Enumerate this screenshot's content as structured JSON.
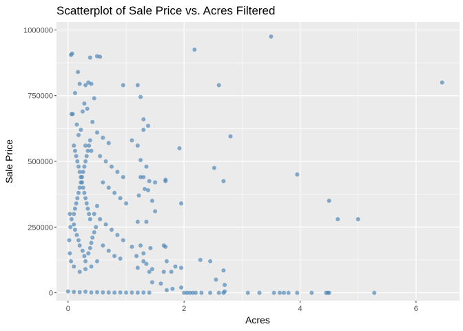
{
  "chart_data": {
    "type": "scatter",
    "title": "Scatterplot of Sale Price vs. Acres Filtered",
    "xlabel": "Acres",
    "ylabel": "Sale Price",
    "xlim": [
      -0.2,
      6.75
    ],
    "ylim": [
      -30000,
      1030000
    ],
    "x_ticks": [
      0,
      2,
      4,
      6
    ],
    "x_tick_labels": [
      "0",
      "2",
      "4",
      "6"
    ],
    "y_ticks": [
      0,
      250000,
      500000,
      750000,
      1000000
    ],
    "y_tick_labels": [
      "0",
      "250000",
      "500000",
      "750000",
      "1000000"
    ],
    "grid": true,
    "legend": "none",
    "series": [
      {
        "color": "#4682b4",
        "opacity": 0.65,
        "points": [
          [
            0.05,
            905000
          ],
          [
            0.07,
            910000
          ],
          [
            0.17,
            840000
          ],
          [
            0.38,
            895000
          ],
          [
            0.5,
            900000
          ],
          [
            0.55,
            898000
          ],
          [
            0.2,
            795000
          ],
          [
            0.3,
            790000
          ],
          [
            0.35,
            800000
          ],
          [
            0.4,
            795000
          ],
          [
            0.45,
            740000
          ],
          [
            0.12,
            760000
          ],
          [
            0.28,
            720000
          ],
          [
            0.33,
            700000
          ],
          [
            0.25,
            690000
          ],
          [
            0.06,
            680000
          ],
          [
            0.08,
            680000
          ],
          [
            0.42,
            650000
          ],
          [
            0.15,
            640000
          ],
          [
            0.22,
            620000
          ],
          [
            0.5,
            610000
          ],
          [
            0.6,
            590000
          ],
          [
            0.7,
            570000
          ],
          [
            0.18,
            600000
          ],
          [
            0.3,
            560000
          ],
          [
            0.4,
            540000
          ],
          [
            0.55,
            520000
          ],
          [
            0.65,
            500000
          ],
          [
            0.75,
            480000
          ],
          [
            0.85,
            460000
          ],
          [
            0.95,
            440000
          ],
          [
            0.6,
            420000
          ],
          [
            0.7,
            400000
          ],
          [
            0.8,
            380000
          ],
          [
            0.9,
            360000
          ],
          [
            1.0,
            340000
          ],
          [
            0.5,
            330000
          ],
          [
            0.45,
            300000
          ],
          [
            0.55,
            280000
          ],
          [
            0.65,
            260000
          ],
          [
            0.75,
            240000
          ],
          [
            0.85,
            220000
          ],
          [
            0.95,
            200000
          ],
          [
            0.6,
            180000
          ],
          [
            0.7,
            160000
          ],
          [
            0.8,
            140000
          ],
          [
            0.9,
            130000
          ],
          [
            0.5,
            120000
          ],
          [
            0.4,
            100000
          ],
          [
            0.3,
            90000
          ],
          [
            0.2,
            80000
          ],
          [
            0.1,
            100000
          ],
          [
            0.05,
            120000
          ],
          [
            0.03,
            150000
          ],
          [
            0.02,
            200000
          ],
          [
            0.04,
            250000
          ],
          [
            0.03,
            300000
          ],
          [
            0.06,
            280000
          ],
          [
            0.1,
            260000
          ],
          [
            0.12,
            240000
          ],
          [
            0.15,
            220000
          ],
          [
            0.18,
            200000
          ],
          [
            0.2,
            180000
          ],
          [
            0.25,
            160000
          ],
          [
            0.28,
            140000
          ],
          [
            0.3,
            120000
          ],
          [
            0.35,
            150000
          ],
          [
            0.38,
            170000
          ],
          [
            0.4,
            190000
          ],
          [
            0.42,
            210000
          ],
          [
            0.45,
            230000
          ],
          [
            0.48,
            250000
          ],
          [
            0.1,
            300000
          ],
          [
            0.12,
            320000
          ],
          [
            0.14,
            340000
          ],
          [
            0.16,
            360000
          ],
          [
            0.18,
            380000
          ],
          [
            0.2,
            400000
          ],
          [
            0.22,
            420000
          ],
          [
            0.24,
            440000
          ],
          [
            0.26,
            460000
          ],
          [
            0.28,
            480000
          ],
          [
            0.3,
            500000
          ],
          [
            0.32,
            520000
          ],
          [
            0.34,
            540000
          ],
          [
            0.36,
            560000
          ],
          [
            0.38,
            580000
          ],
          [
            0.1,
            560000
          ],
          [
            0.12,
            540000
          ],
          [
            0.14,
            520000
          ],
          [
            0.16,
            500000
          ],
          [
            0.18,
            480000
          ],
          [
            0.2,
            460000
          ],
          [
            0.22,
            440000
          ],
          [
            0.24,
            420000
          ],
          [
            0.26,
            400000
          ],
          [
            0.28,
            380000
          ],
          [
            0.3,
            360000
          ],
          [
            0.32,
            340000
          ],
          [
            0.34,
            320000
          ],
          [
            0.36,
            300000
          ],
          [
            0.38,
            280000
          ],
          [
            0.0,
            5000
          ],
          [
            0.1,
            3000
          ],
          [
            0.2,
            2000
          ],
          [
            0.3,
            4000
          ],
          [
            0.4,
            1000
          ],
          [
            0.5,
            2000
          ],
          [
            0.6,
            1500
          ],
          [
            0.7,
            1000
          ],
          [
            0.8,
            500
          ],
          [
            0.9,
            1000
          ],
          [
            1.0,
            500
          ],
          [
            1.1,
            800
          ],
          [
            1.2,
            600
          ],
          [
            1.3,
            900
          ],
          [
            1.4,
            400
          ],
          [
            0.95,
            790000
          ],
          [
            1.2,
            790000
          ],
          [
            1.25,
            745000
          ],
          [
            1.3,
            660000
          ],
          [
            1.38,
            635000
          ],
          [
            1.3,
            620000
          ],
          [
            1.1,
            580000
          ],
          [
            1.2,
            560000
          ],
          [
            1.25,
            505000
          ],
          [
            1.35,
            480000
          ],
          [
            1.3,
            440000
          ],
          [
            1.25,
            440000
          ],
          [
            1.4,
            425000
          ],
          [
            1.5,
            420000
          ],
          [
            1.32,
            395000
          ],
          [
            1.38,
            390000
          ],
          [
            1.22,
            370000
          ],
          [
            1.45,
            350000
          ],
          [
            1.5,
            310000
          ],
          [
            1.35,
            270000
          ],
          [
            1.2,
            270000
          ],
          [
            1.25,
            180000
          ],
          [
            1.3,
            150000
          ],
          [
            1.18,
            140000
          ],
          [
            1.1,
            175000
          ],
          [
            1.42,
            170000
          ],
          [
            1.3,
            120000
          ],
          [
            1.35,
            110000
          ],
          [
            1.2,
            95000
          ],
          [
            1.45,
            90000
          ],
          [
            1.4,
            80000
          ],
          [
            1.45,
            40000
          ],
          [
            1.6,
            35000
          ],
          [
            1.68,
            430000
          ],
          [
            1.68,
            425000
          ],
          [
            1.65,
            180000
          ],
          [
            1.68,
            175000
          ],
          [
            1.7,
            120000
          ],
          [
            1.65,
            80000
          ],
          [
            1.78,
            80000
          ],
          [
            1.85,
            100000
          ],
          [
            1.95,
            95000
          ],
          [
            1.92,
            550000
          ],
          [
            1.95,
            340000
          ],
          [
            2.18,
            925000
          ],
          [
            2.52,
            475000
          ],
          [
            2.6,
            790000
          ],
          [
            2.68,
            425000
          ],
          [
            2.8,
            595000
          ],
          [
            2.28,
            125000
          ],
          [
            2.45,
            120000
          ],
          [
            2.55,
            50000
          ],
          [
            2.68,
            85000
          ],
          [
            2.7,
            30000
          ],
          [
            3.5,
            975000
          ],
          [
            3.95,
            450000
          ],
          [
            4.5,
            350000
          ],
          [
            4.65,
            280000
          ],
          [
            5.0,
            280000
          ],
          [
            6.45,
            800000
          ],
          [
            1.7,
            10000
          ],
          [
            1.8,
            15000
          ],
          [
            1.95,
            20000
          ],
          [
            2.0,
            0
          ],
          [
            2.05,
            0
          ],
          [
            2.1,
            0
          ],
          [
            2.15,
            0
          ],
          [
            2.2,
            0
          ],
          [
            2.3,
            0
          ],
          [
            2.45,
            0
          ],
          [
            2.6,
            0
          ],
          [
            2.68,
            0
          ],
          [
            2.7,
            5000
          ],
          [
            3.1,
            0
          ],
          [
            3.3,
            0
          ],
          [
            3.55,
            0
          ],
          [
            3.65,
            0
          ],
          [
            3.72,
            0
          ],
          [
            3.8,
            0
          ],
          [
            3.95,
            0
          ],
          [
            4.2,
            0
          ],
          [
            4.45,
            0
          ],
          [
            4.48,
            0
          ],
          [
            4.5,
            0
          ],
          [
            5.28,
            0
          ]
        ]
      }
    ]
  }
}
